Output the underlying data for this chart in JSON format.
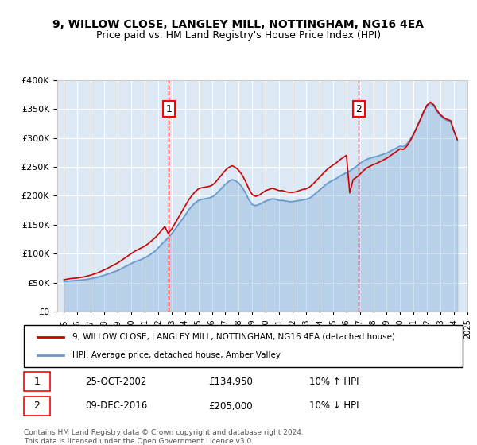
{
  "title_line1": "9, WILLOW CLOSE, LANGLEY MILL, NOTTINGHAM, NG16 4EA",
  "title_line2": "Price paid vs. HM Land Registry's House Price Index (HPI)",
  "background_color": "#dce9f5",
  "plot_bg_color": "#dce9f5",
  "legend_line1": "9, WILLOW CLOSE, LANGLEY MILL, NOTTINGHAM, NG16 4EA (detached house)",
  "legend_line2": "HPI: Average price, detached house, Amber Valley",
  "annotation1_label": "1",
  "annotation1_date": "25-OCT-2002",
  "annotation1_price": "£134,950",
  "annotation1_hpi": "10% ↑ HPI",
  "annotation1_year": 2002.8,
  "annotation2_label": "2",
  "annotation2_date": "09-DEC-2016",
  "annotation2_price": "£205,000",
  "annotation2_hpi": "10% ↓ HPI",
  "annotation2_year": 2016.93,
  "footer": "Contains HM Land Registry data © Crown copyright and database right 2024.\nThis data is licensed under the Open Government Licence v3.0.",
  "red_line_color": "#cc0000",
  "blue_line_color": "#6699cc",
  "ylim": [
    0,
    400000
  ],
  "yticks": [
    0,
    50000,
    100000,
    150000,
    200000,
    250000,
    300000,
    350000,
    400000
  ],
  "hpi_data": {
    "years": [
      1995.0,
      1995.25,
      1995.5,
      1995.75,
      1996.0,
      1996.25,
      1996.5,
      1996.75,
      1997.0,
      1997.25,
      1997.5,
      1997.75,
      1998.0,
      1998.25,
      1998.5,
      1998.75,
      1999.0,
      1999.25,
      1999.5,
      1999.75,
      2000.0,
      2000.25,
      2000.5,
      2000.75,
      2001.0,
      2001.25,
      2001.5,
      2001.75,
      2002.0,
      2002.25,
      2002.5,
      2002.75,
      2003.0,
      2003.25,
      2003.5,
      2003.75,
      2004.0,
      2004.25,
      2004.5,
      2004.75,
      2005.0,
      2005.25,
      2005.5,
      2005.75,
      2006.0,
      2006.25,
      2006.5,
      2006.75,
      2007.0,
      2007.25,
      2007.5,
      2007.75,
      2008.0,
      2008.25,
      2008.5,
      2008.75,
      2009.0,
      2009.25,
      2009.5,
      2009.75,
      2010.0,
      2010.25,
      2010.5,
      2010.75,
      2011.0,
      2011.25,
      2011.5,
      2011.75,
      2012.0,
      2012.25,
      2012.5,
      2012.75,
      2013.0,
      2013.25,
      2013.5,
      2013.75,
      2014.0,
      2014.25,
      2014.5,
      2014.75,
      2015.0,
      2015.25,
      2015.5,
      2015.75,
      2016.0,
      2016.25,
      2016.5,
      2016.75,
      2017.0,
      2017.25,
      2017.5,
      2017.75,
      2018.0,
      2018.25,
      2018.5,
      2018.75,
      2019.0,
      2019.25,
      2019.5,
      2019.75,
      2020.0,
      2020.25,
      2020.5,
      2020.75,
      2021.0,
      2021.25,
      2021.5,
      2021.75,
      2022.0,
      2022.25,
      2022.5,
      2022.75,
      2023.0,
      2023.25,
      2023.5,
      2023.75,
      2024.0,
      2024.25
    ],
    "values": [
      52000,
      52500,
      53000,
      53500,
      54000,
      54500,
      55000,
      55800,
      57000,
      58000,
      59500,
      61000,
      63000,
      65000,
      67000,
      69000,
      71000,
      74000,
      77000,
      80000,
      83000,
      86000,
      88000,
      90000,
      93000,
      96000,
      100000,
      104000,
      110000,
      116000,
      122000,
      128000,
      134000,
      142000,
      150000,
      158000,
      166000,
      175000,
      182000,
      188000,
      192000,
      194000,
      195000,
      196000,
      198000,
      202000,
      208000,
      214000,
      220000,
      225000,
      228000,
      226000,
      222000,
      215000,
      205000,
      193000,
      185000,
      183000,
      185000,
      188000,
      191000,
      193000,
      195000,
      194000,
      192000,
      192000,
      191000,
      190000,
      190000,
      191000,
      192000,
      193000,
      194000,
      196000,
      200000,
      205000,
      210000,
      215000,
      220000,
      224000,
      227000,
      230000,
      234000,
      237000,
      240000,
      243000,
      247000,
      251000,
      256000,
      260000,
      263000,
      265000,
      267000,
      268000,
      270000,
      272000,
      274000,
      277000,
      280000,
      283000,
      286000,
      285000,
      290000,
      298000,
      308000,
      320000,
      332000,
      345000,
      355000,
      360000,
      355000,
      345000,
      338000,
      333000,
      330000,
      328000,
      310000,
      295000
    ]
  },
  "price_paid_data": {
    "years": [
      1995.0,
      1995.25,
      1995.5,
      1995.75,
      1996.0,
      1996.25,
      1996.5,
      1996.75,
      1997.0,
      1997.25,
      1997.5,
      1997.75,
      1998.0,
      1998.25,
      1998.5,
      1998.75,
      1999.0,
      1999.25,
      1999.5,
      1999.75,
      2000.0,
      2000.25,
      2000.5,
      2000.75,
      2001.0,
      2001.25,
      2001.5,
      2001.75,
      2002.0,
      2002.25,
      2002.5,
      2002.75,
      2003.0,
      2003.25,
      2003.5,
      2003.75,
      2004.0,
      2004.25,
      2004.5,
      2004.75,
      2005.0,
      2005.25,
      2005.5,
      2005.75,
      2006.0,
      2006.25,
      2006.5,
      2006.75,
      2007.0,
      2007.25,
      2007.5,
      2007.75,
      2008.0,
      2008.25,
      2008.5,
      2008.75,
      2009.0,
      2009.25,
      2009.5,
      2009.75,
      2010.0,
      2010.25,
      2010.5,
      2010.75,
      2011.0,
      2011.25,
      2011.5,
      2011.75,
      2012.0,
      2012.25,
      2012.5,
      2012.75,
      2013.0,
      2013.25,
      2013.5,
      2013.75,
      2014.0,
      2014.25,
      2014.5,
      2014.75,
      2015.0,
      2015.25,
      2015.5,
      2015.75,
      2016.0,
      2016.25,
      2016.5,
      2016.75,
      2017.0,
      2017.25,
      2017.5,
      2017.75,
      2018.0,
      2018.25,
      2018.5,
      2018.75,
      2019.0,
      2019.25,
      2019.5,
      2019.75,
      2020.0,
      2020.25,
      2020.5,
      2020.75,
      2021.0,
      2021.25,
      2021.5,
      2021.75,
      2022.0,
      2022.25,
      2022.5,
      2022.75,
      2023.0,
      2023.25,
      2023.5,
      2023.75,
      2024.0,
      2024.25
    ],
    "values": [
      55000,
      56000,
      57000,
      57500,
      58000,
      59000,
      60000,
      61500,
      63000,
      65000,
      67000,
      69500,
      72000,
      75000,
      78000,
      81000,
      84000,
      88000,
      92000,
      96000,
      100000,
      104000,
      107000,
      110000,
      113000,
      117000,
      122000,
      127000,
      133000,
      140000,
      147000,
      134950,
      142000,
      152000,
      162000,
      172000,
      182000,
      192000,
      200000,
      207000,
      212000,
      214000,
      215000,
      216000,
      218000,
      223000,
      230000,
      237000,
      244000,
      249000,
      252000,
      249000,
      244000,
      236000,
      225000,
      212000,
      202000,
      199000,
      201000,
      205000,
      209000,
      211000,
      213000,
      211000,
      209000,
      209000,
      207000,
      206000,
      206000,
      207000,
      209000,
      211000,
      212000,
      215000,
      220000,
      226000,
      232000,
      238000,
      244000,
      249000,
      253000,
      257000,
      262000,
      266000,
      270000,
      205000,
      228000,
      232000,
      237000,
      243000,
      248000,
      251000,
      254000,
      256000,
      259000,
      262000,
      265000,
      269000,
      273000,
      277000,
      281000,
      280000,
      286000,
      295000,
      306000,
      319000,
      332000,
      346000,
      357000,
      362000,
      357000,
      347000,
      340000,
      335000,
      332000,
      330000,
      312000,
      297000
    ]
  }
}
